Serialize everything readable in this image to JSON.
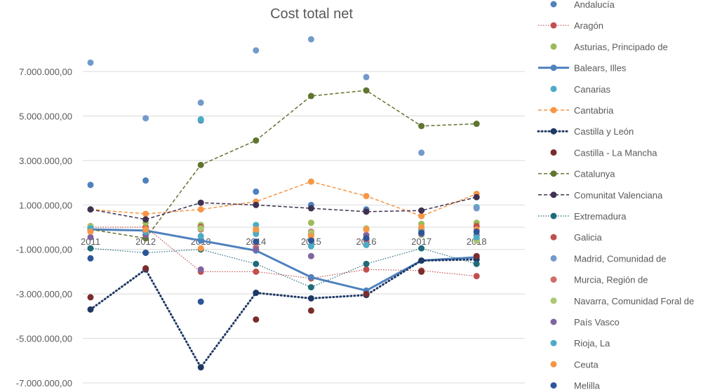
{
  "chart_data": {
    "type": "line",
    "title": "Cost total net",
    "xlabel": "",
    "ylabel": "",
    "categories": [
      "2011",
      "2012",
      "2013",
      "2014",
      "2015",
      "2016",
      "2017",
      "2018"
    ],
    "ylim": [
      -7000000,
      9000000
    ],
    "yticks": [
      -7000000,
      -5000000,
      -3000000,
      -1000000,
      1000000,
      3000000,
      5000000,
      7000000
    ],
    "ytick_labels": [
      "-7.000.000,00",
      "-5.000.000,00",
      "-3.000.000,00",
      "-1.000.000,00",
      "1.000.000,00",
      "3.000.000,00",
      "5.000.000,00",
      "7.000.000,00"
    ],
    "grid": true,
    "legend_position": "right",
    "series": [
      {
        "name": "Andalucía",
        "color": "#4F81BD",
        "line": "none",
        "values": [
          1900000,
          2100000,
          4800000,
          1600000,
          1000000,
          800000,
          -200000,
          900000
        ]
      },
      {
        "name": "Aragón",
        "color": "#C0504D",
        "line": "dotted",
        "values": [
          0,
          0,
          -2000000,
          -2000000,
          -2300000,
          -1900000,
          -1950000,
          -2200000
        ]
      },
      {
        "name": "Asturias, Principado de",
        "color": "#9BBB59",
        "line": "none",
        "values": [
          50000,
          200000,
          100000,
          -100000,
          200000,
          -100000,
          150000,
          200000
        ]
      },
      {
        "name": "Balears, Illes",
        "color": "#4F81BD",
        "line": "thick",
        "values": [
          -100000,
          -150000,
          -600000,
          -1050000,
          -2250000,
          -2850000,
          -1500000,
          -1350000
        ]
      },
      {
        "name": "Canarias",
        "color": "#4BACC6",
        "line": "none",
        "values": [
          -100000,
          -200000,
          -400000,
          100000,
          -850000,
          -800000,
          -100000,
          900000
        ]
      },
      {
        "name": "Cantabria",
        "color": "#F79646",
        "line": "dashed",
        "values": [
          800000,
          600000,
          800000,
          1150000,
          2050000,
          1400000,
          500000,
          1500000
        ]
      },
      {
        "name": "Castilla y León",
        "color": "#1F3864",
        "line": "dots",
        "values": [
          -3700000,
          -1900000,
          -6300000,
          -2950000,
          -3200000,
          -3050000,
          -1500000,
          -1450000
        ]
      },
      {
        "name": "Castilla - La Mancha",
        "color": "#7B2C2C",
        "line": "none",
        "values": [
          -3150000,
          -1850000,
          0,
          -4150000,
          -3750000,
          -3000000,
          -2000000,
          -1300000
        ]
      },
      {
        "name": "Catalunya",
        "color": "#5F7530",
        "line": "dashed",
        "values": [
          -100000,
          -500000,
          2800000,
          3900000,
          5900000,
          6150000,
          4550000,
          4650000
        ]
      },
      {
        "name": "Comunitat Valenciana",
        "color": "#3F3151",
        "line": "dashed",
        "values": [
          800000,
          350000,
          1100000,
          1000000,
          850000,
          700000,
          750000,
          1350000
        ]
      },
      {
        "name": "Extremadura",
        "color": "#1F6B7A",
        "line": "dotted",
        "values": [
          -950000,
          -1150000,
          -1000000,
          -1650000,
          -2700000,
          -1650000,
          -950000,
          -1650000
        ]
      },
      {
        "name": "Galicia",
        "color": "#C0504D",
        "line": "none",
        "values": [
          0,
          -100000,
          0,
          -200000,
          -300000,
          -500000,
          -100000,
          50000
        ]
      },
      {
        "name": "Madrid, Comunidad de",
        "color": "#729ACA",
        "line": "none",
        "values": [
          7400000,
          4900000,
          5600000,
          7950000,
          8450000,
          6750000,
          3350000,
          850000
        ]
      },
      {
        "name": "Murcia, Región de",
        "color": "#D06D6A",
        "line": "none",
        "values": [
          -150000,
          -200000,
          -100000,
          -900000,
          -200000,
          -600000,
          -300000,
          -600000
        ]
      },
      {
        "name": "Navarra, Comunidad Foral de",
        "color": "#A9C86F",
        "line": "none",
        "values": [
          0,
          -100000,
          -50000,
          -150000,
          -250000,
          -50000,
          -350000,
          -600000
        ]
      },
      {
        "name": "País Vasco",
        "color": "#8064A2",
        "line": "none",
        "values": [
          -450000,
          -350000,
          -1900000,
          -1000000,
          -1300000,
          -350000,
          -300000,
          -350000
        ]
      },
      {
        "name": "Rioja, La",
        "color": "#4BACC6",
        "line": "none",
        "values": [
          -50000,
          -200000,
          4850000,
          -300000,
          -850000,
          -800000,
          -100000,
          -450000
        ]
      },
      {
        "name": "Ceuta",
        "color": "#F79646",
        "line": "none",
        "values": [
          -200000,
          -100000,
          -950000,
          -100000,
          -400000,
          -100000,
          0,
          -100000
        ]
      },
      {
        "name": "Melilla",
        "color": "#2E5597",
        "line": "none",
        "values": [
          -1400000,
          -1150000,
          -3350000,
          -650000,
          -600000,
          -500000,
          -250000,
          -200000
        ]
      }
    ]
  }
}
